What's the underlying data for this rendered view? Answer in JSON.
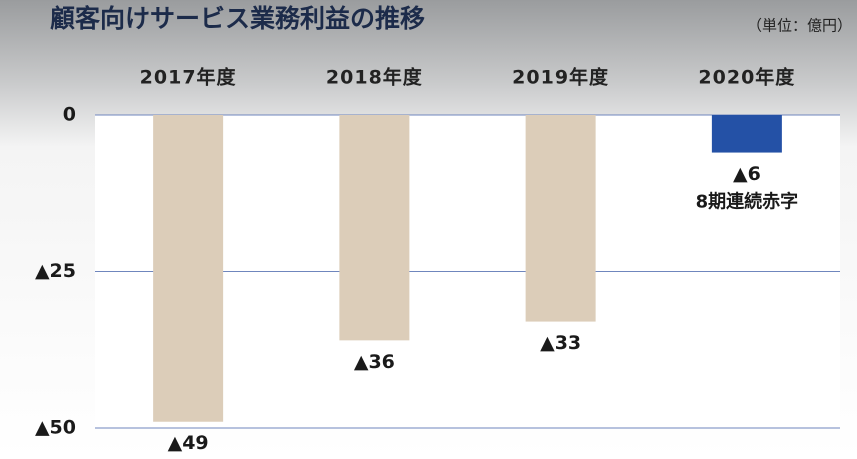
{
  "chart_data": {
    "type": "bar",
    "title": "顧客向けサービス業務利益の推移",
    "unit": "（単位：億円）",
    "categories": [
      "2017年度",
      "2018年度",
      "2019年度",
      "2020年度"
    ],
    "values": [
      -49,
      -36,
      -33,
      -6
    ],
    "value_labels": [
      "▲49",
      "▲36",
      "▲33",
      "▲6"
    ],
    "colors": [
      "#dccdb9",
      "#dccdb9",
      "#dccdb9",
      "#2451a6"
    ],
    "annotation": "8期連続赤字",
    "ylim": [
      -50,
      0
    ],
    "yticks": [
      0,
      {
        "value": -25,
        "label": "▲25"
      },
      {
        "value": -50,
        "label": "▲50"
      }
    ],
    "grid": true
  }
}
